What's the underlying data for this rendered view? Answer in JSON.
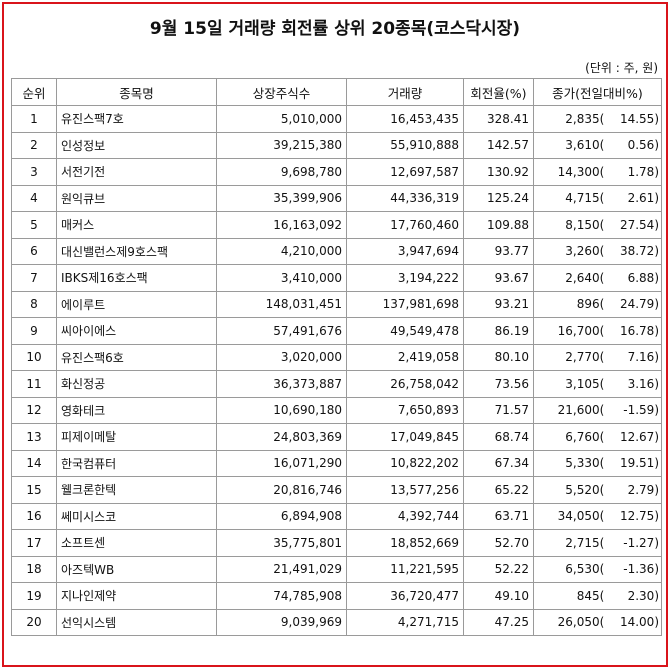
{
  "title": "9월 15일 거래량 회전률 상위 20종목(코스닥시장)",
  "unit_note": "(단위 : 주, 원)",
  "columns": [
    "순위",
    "종목명",
    "상장주식수",
    "거래량",
    "회전율(%)",
    "종가(전일대비%)"
  ],
  "rows": [
    {
      "rank": "1",
      "name": "유진스팩7호",
      "shares": "5,010,000",
      "volume": "16,453,435",
      "turnover": "328.41",
      "price": "2,835",
      "change": "14.55"
    },
    {
      "rank": "2",
      "name": "인성정보",
      "shares": "39,215,380",
      "volume": "55,910,888",
      "turnover": "142.57",
      "price": "3,610",
      "change": "0.56"
    },
    {
      "rank": "3",
      "name": "서전기전",
      "shares": "9,698,780",
      "volume": "12,697,587",
      "turnover": "130.92",
      "price": "14,300",
      "change": "1.78"
    },
    {
      "rank": "4",
      "name": "원익큐브",
      "shares": "35,399,906",
      "volume": "44,336,319",
      "turnover": "125.24",
      "price": "4,715",
      "change": "2.61"
    },
    {
      "rank": "5",
      "name": "매커스",
      "shares": "16,163,092",
      "volume": "17,760,460",
      "turnover": "109.88",
      "price": "8,150",
      "change": "27.54"
    },
    {
      "rank": "6",
      "name": "대신밸런스제9호스팩",
      "shares": "4,210,000",
      "volume": "3,947,694",
      "turnover": "93.77",
      "price": "3,260",
      "change": "38.72"
    },
    {
      "rank": "7",
      "name": "IBKS제16호스팩",
      "shares": "3,410,000",
      "volume": "3,194,222",
      "turnover": "93.67",
      "price": "2,640",
      "change": "6.88"
    },
    {
      "rank": "8",
      "name": "에이루트",
      "shares": "148,031,451",
      "volume": "137,981,698",
      "turnover": "93.21",
      "price": "896",
      "change": "24.79"
    },
    {
      "rank": "9",
      "name": "씨아이에스",
      "shares": "57,491,676",
      "volume": "49,549,478",
      "turnover": "86.19",
      "price": "16,700",
      "change": "16.78"
    },
    {
      "rank": "10",
      "name": "유진스팩6호",
      "shares": "3,020,000",
      "volume": "2,419,058",
      "turnover": "80.10",
      "price": "2,770",
      "change": "7.16"
    },
    {
      "rank": "11",
      "name": "화신정공",
      "shares": "36,373,887",
      "volume": "26,758,042",
      "turnover": "73.56",
      "price": "3,105",
      "change": "3.16"
    },
    {
      "rank": "12",
      "name": "영화테크",
      "shares": "10,690,180",
      "volume": "7,650,893",
      "turnover": "71.57",
      "price": "21,600",
      "change": "-1.59"
    },
    {
      "rank": "13",
      "name": "피제이메탈",
      "shares": "24,803,369",
      "volume": "17,049,845",
      "turnover": "68.74",
      "price": "6,760",
      "change": "12.67"
    },
    {
      "rank": "14",
      "name": "한국컴퓨터",
      "shares": "16,071,290",
      "volume": "10,822,202",
      "turnover": "67.34",
      "price": "5,330",
      "change": "19.51"
    },
    {
      "rank": "15",
      "name": "웰크론한텍",
      "shares": "20,816,746",
      "volume": "13,577,256",
      "turnover": "65.22",
      "price": "5,520",
      "change": "2.79"
    },
    {
      "rank": "16",
      "name": "쎄미시스코",
      "shares": "6,894,908",
      "volume": "4,392,744",
      "turnover": "63.71",
      "price": "34,050",
      "change": "12.75"
    },
    {
      "rank": "17",
      "name": "소프트센",
      "shares": "35,775,801",
      "volume": "18,852,669",
      "turnover": "52.70",
      "price": "2,715",
      "change": "-1.27"
    },
    {
      "rank": "18",
      "name": "아즈텍WB",
      "shares": "21,491,029",
      "volume": "11,221,595",
      "turnover": "52.22",
      "price": "6,530",
      "change": "-1.36"
    },
    {
      "rank": "19",
      "name": "지나인제약",
      "shares": "74,785,908",
      "volume": "36,720,477",
      "turnover": "49.10",
      "price": "845",
      "change": "2.30"
    },
    {
      "rank": "20",
      "name": "선익시스템",
      "shares": "9,039,969",
      "volume": "4,271,715",
      "turnover": "47.25",
      "price": "26,050",
      "change": "14.00"
    }
  ],
  "colors": {
    "frame_border": "#d9141b",
    "grid": "#9a9a9a"
  }
}
